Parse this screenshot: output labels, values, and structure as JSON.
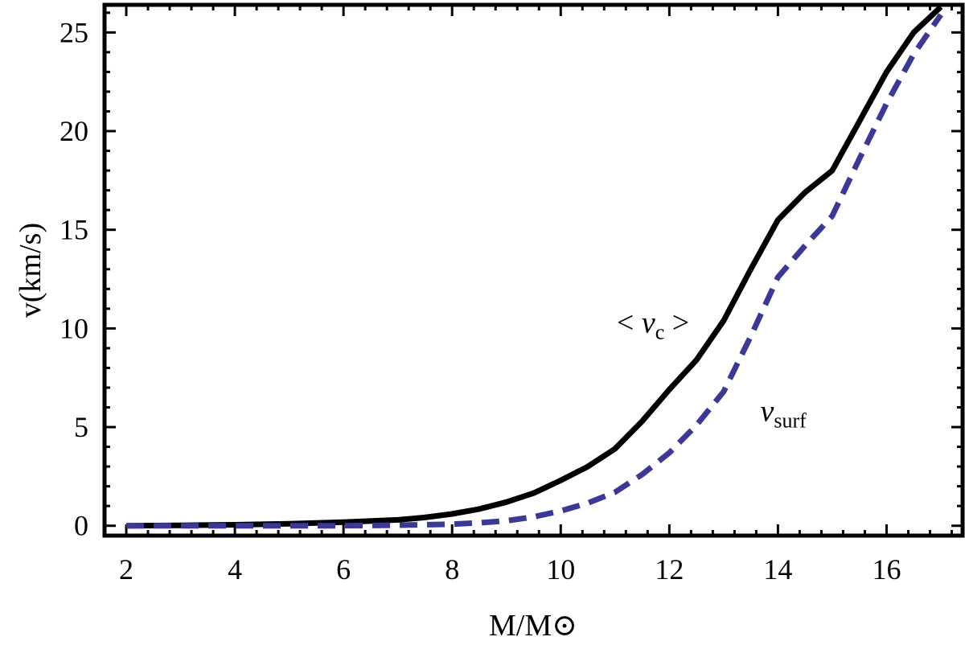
{
  "chart_data": {
    "type": "line",
    "title": "",
    "xlabel": "M/M⊙",
    "ylabel": "v(km/s)",
    "xlim": [
      1.6,
      17.4
    ],
    "ylim": [
      -0.5,
      26.4
    ],
    "xticks": [
      2,
      4,
      6,
      8,
      10,
      12,
      14,
      16
    ],
    "yticks": [
      0,
      5,
      10,
      15,
      20,
      25
    ],
    "grid": false,
    "series": [
      {
        "name": "<vc>",
        "style": "solid",
        "color": "#000000",
        "x": [
          2,
          3,
          4,
          5,
          6,
          7,
          7.5,
          8,
          8.5,
          9,
          9.5,
          10,
          10.5,
          11,
          11.5,
          12,
          12.5,
          13,
          13.5,
          14,
          14.5,
          15,
          15.5,
          16,
          16.5,
          17
        ],
        "y": [
          0.0,
          0.02,
          0.05,
          0.1,
          0.18,
          0.3,
          0.42,
          0.6,
          0.85,
          1.2,
          1.65,
          2.3,
          3.0,
          3.9,
          5.3,
          6.9,
          8.4,
          10.4,
          13.0,
          15.5,
          16.9,
          18.0,
          20.5,
          23.0,
          25.0,
          26.3
        ]
      },
      {
        "name": "vsurf",
        "style": "dashed",
        "color": "#3a3a96",
        "x": [
          2,
          4,
          6,
          7,
          8,
          8.5,
          9,
          9.5,
          10,
          10.5,
          11,
          11.5,
          12,
          12.5,
          13,
          13.5,
          14,
          14.5,
          15,
          15.5,
          16,
          16.5,
          17
        ],
        "y": [
          0.0,
          0.0,
          0.0,
          0.03,
          0.08,
          0.15,
          0.25,
          0.45,
          0.75,
          1.15,
          1.7,
          2.6,
          3.7,
          5.1,
          6.8,
          9.6,
          12.6,
          14.2,
          15.7,
          18.6,
          21.4,
          23.9,
          25.9
        ]
      }
    ],
    "annotations": [
      {
        "text_pre": "< ",
        "sym": "v",
        "sub": "c",
        "text_post": " >",
        "x": 11.7,
        "y": 9.8
      },
      {
        "text_pre": "",
        "sym": "v",
        "sub": "surf",
        "text_post": "",
        "x": 14.1,
        "y": 5.3
      }
    ]
  }
}
